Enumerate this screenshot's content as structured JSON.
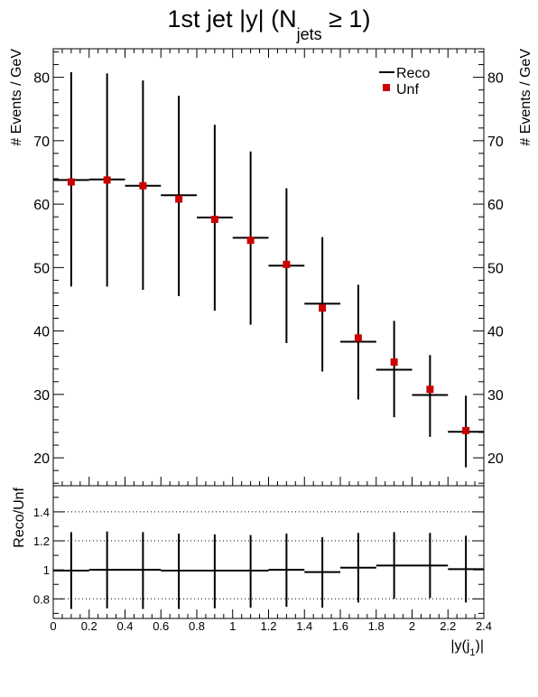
{
  "title": {
    "main": "1st jet |y| (N",
    "sub": "jets",
    "tail": " ≥ 1)"
  },
  "chart_data": [
    {
      "type": "scatter",
      "panel": "main",
      "ylabel": "# Events / GeV",
      "xlim": [
        0,
        2.4
      ],
      "ylim": [
        15.6,
        84.5
      ],
      "yticks": [
        20,
        30,
        40,
        50,
        60,
        70,
        80
      ],
      "legend": {
        "placement": "top-right",
        "entries": [
          {
            "label": "Reco",
            "marker": "line",
            "color": "#000000"
          },
          {
            "label": "Unf",
            "marker": "square",
            "color": "#cc0000"
          }
        ]
      },
      "bin_edges": [
        0,
        0.2,
        0.4,
        0.6,
        0.8,
        1.0,
        1.2,
        1.4,
        1.6,
        1.8,
        2.0,
        2.2,
        2.4
      ],
      "series": [
        {
          "name": "Reco",
          "color": "#000000",
          "values": [
            63.8,
            63.9,
            62.9,
            61.4,
            57.9,
            54.7,
            50.3,
            44.3,
            38.3,
            33.9,
            29.9,
            24.1
          ],
          "err_low": [
            47.0,
            47.0,
            46.5,
            45.5,
            43.2,
            41.0,
            38.1,
            33.6,
            29.2,
            26.4,
            23.3,
            18.5
          ],
          "err_high": [
            80.8,
            80.6,
            79.5,
            77.1,
            72.5,
            68.3,
            62.5,
            54.8,
            47.3,
            41.6,
            36.2,
            29.8
          ]
        },
        {
          "name": "Unf",
          "color": "#cc0000",
          "values": [
            63.5,
            63.8,
            62.9,
            60.8,
            57.6,
            54.3,
            50.5,
            43.6,
            38.9,
            35.1,
            30.8,
            24.3
          ]
        }
      ]
    },
    {
      "type": "line",
      "panel": "ratio",
      "ylabel": "Reco/Unf",
      "xlabel": "|y(j",
      "xlabel_sub": "1",
      "xlabel_tail": ")|",
      "xlim": [
        0,
        2.4
      ],
      "ylim": [
        0.665,
        1.58
      ],
      "xticks": [
        "0",
        "0.2",
        "0.4",
        "0.6",
        "0.8",
        "1",
        "1.2",
        "1.4",
        "1.6",
        "1.8",
        "2",
        "2.2",
        "2.4"
      ],
      "yticks": [
        "0.8",
        "1",
        "1.2",
        "1.4"
      ],
      "gridlines_y": [
        0.8,
        1.2,
        1.4
      ],
      "series": [
        {
          "name": "Reco/Unf",
          "values": [
            0.995,
            1.0,
            1.0,
            0.995,
            0.995,
            0.995,
            1.0,
            0.985,
            1.015,
            1.03,
            1.03,
            1.005
          ],
          "err_low": [
            0.73,
            0.735,
            0.73,
            0.73,
            0.735,
            0.74,
            0.745,
            0.74,
            0.775,
            0.8,
            0.805,
            0.775
          ],
          "err_high": [
            1.26,
            1.265,
            1.26,
            1.25,
            1.245,
            1.24,
            1.25,
            1.225,
            1.255,
            1.26,
            1.255,
            1.235
          ]
        }
      ]
    }
  ]
}
